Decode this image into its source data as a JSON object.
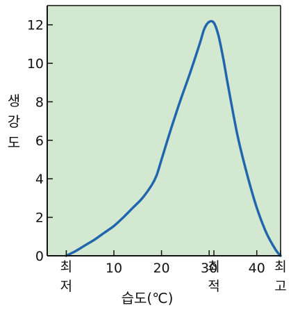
{
  "chart_data": {
    "type": "line",
    "xlabel": "습도(℃)",
    "ylabel": "생강도",
    "xlim": [
      -4,
      45
    ],
    "ylim": [
      0,
      13
    ],
    "x_ticks": [
      10,
      20,
      30,
      40
    ],
    "y_ticks": [
      0,
      2,
      4,
      6,
      8,
      10,
      12
    ],
    "grid": false,
    "colors": {
      "plot_background": "#d3e8d0",
      "line": "#2166ac",
      "axis": "#111111"
    },
    "markers": [
      {
        "x": 0,
        "label_lines": [
          "최",
          "저"
        ]
      },
      {
        "x": 31,
        "label_lines": [
          "최",
          "적"
        ]
      },
      {
        "x": 45,
        "label_lines": [
          "최",
          "고"
        ]
      }
    ],
    "series": [
      {
        "x": [
          0,
          2,
          4,
          6,
          8,
          10,
          12,
          14,
          16,
          18,
          19,
          20,
          22,
          24,
          26,
          28,
          29,
          30,
          31,
          32,
          33,
          34,
          36,
          38,
          40,
          42,
          44,
          45
        ],
        "values": [
          0,
          0.25,
          0.55,
          0.85,
          1.2,
          1.55,
          2.0,
          2.5,
          3.0,
          3.7,
          4.2,
          5.0,
          6.6,
          8.1,
          9.5,
          11.0,
          11.8,
          12.15,
          12.1,
          11.4,
          10.2,
          8.8,
          6.2,
          4.2,
          2.5,
          1.2,
          0.3,
          0
        ]
      }
    ]
  }
}
